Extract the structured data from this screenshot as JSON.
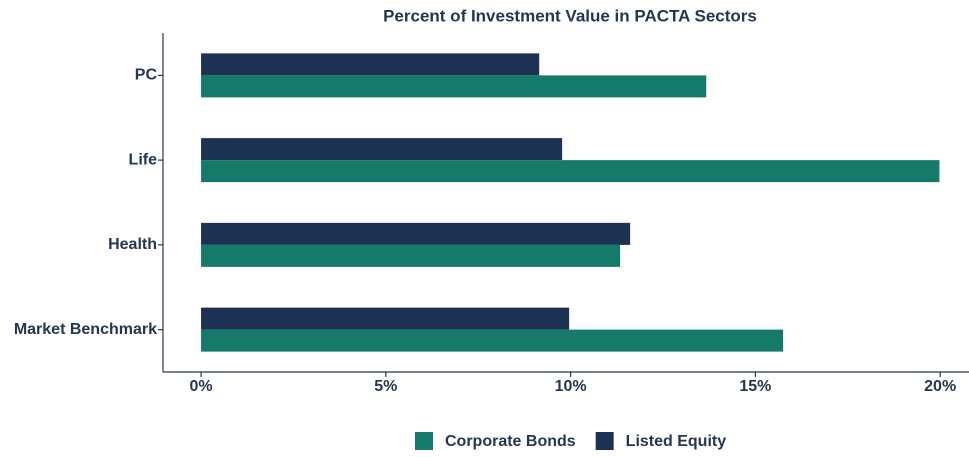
{
  "chart_data": {
    "type": "barh",
    "title": "Percent of Investment Value in PACTA Sectors",
    "categories": [
      "PC",
      "Life",
      "Health",
      "Market Benchmark"
    ],
    "series": [
      {
        "name": "Corporate Bonds",
        "color": "#167a6a",
        "values": [
          13.67,
          19.98,
          11.34,
          15.75
        ]
      },
      {
        "name": "Listed Equity",
        "color": "#1d3152",
        "values": [
          9.15,
          9.77,
          11.61,
          9.96
        ]
      }
    ],
    "xlim": [
      -1.03,
      20.78
    ],
    "xticks": [
      {
        "value": 0,
        "label": "0%"
      },
      {
        "value": 5,
        "label": "5%"
      },
      {
        "value": 10,
        "label": "10%"
      },
      {
        "value": 15,
        "label": "15%"
      },
      {
        "value": 20,
        "label": "20%"
      }
    ],
    "grid": false,
    "legend": "bottom"
  }
}
